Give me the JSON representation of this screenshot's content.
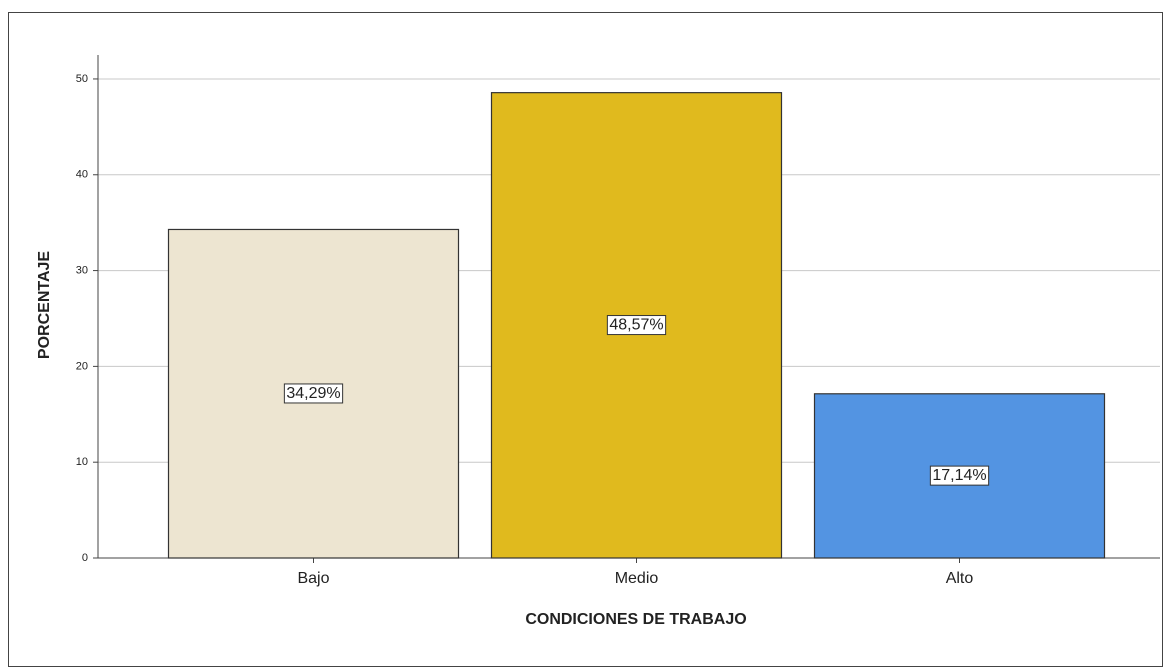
{
  "chart_data": {
    "type": "bar",
    "x_label": "CONDICIONES DE TRABAJO",
    "y_label": "PORCENTAJE",
    "categories": [
      "Bajo",
      "Medio",
      "Alto"
    ],
    "values": [
      34.29,
      48.57,
      17.14
    ],
    "value_labels": [
      "34,29%",
      "48,57%",
      "17,14%"
    ],
    "colors": [
      "#ede5d1",
      "#e0ba1e",
      "#5394e2"
    ],
    "ylim": [
      0,
      52.5
    ],
    "yticks": [
      0,
      10,
      20,
      30,
      40,
      50
    ],
    "grid": true
  }
}
